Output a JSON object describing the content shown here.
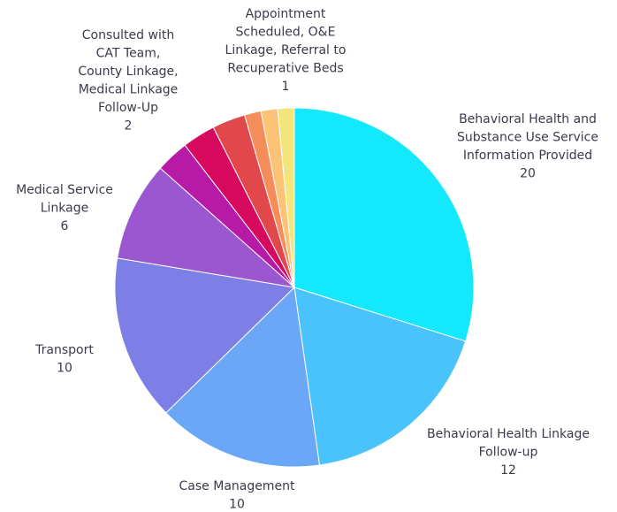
{
  "chart_data": {
    "type": "pie",
    "categories": [
      "Behavioral Health and\nSubstance Use Service\nInformation Provided",
      "Behavioral Health Linkage\nFollow-up",
      "Case Management",
      "Transport",
      "Medical Service\nLinkage",
      null,
      null,
      "Consulted with\nCAT Team,\nCounty Linkage,\nMedical Linkage\nFollow-Up",
      null,
      null,
      "Appointment\nScheduled, O&E\nLinkage, Referral to\nRecuperative Beds"
    ],
    "values": [
      20,
      12,
      10,
      10,
      6,
      2,
      2,
      2,
      1,
      1,
      1
    ],
    "colors": [
      "#13e8fc",
      "#4ac3fd",
      "#6aa8f7",
      "#7d7fe6",
      "#9a57cf",
      "#b81aa8",
      "#d6095e",
      "#e0484c",
      "#f48d5a",
      "#fcc275",
      "#f4e57a"
    ]
  }
}
